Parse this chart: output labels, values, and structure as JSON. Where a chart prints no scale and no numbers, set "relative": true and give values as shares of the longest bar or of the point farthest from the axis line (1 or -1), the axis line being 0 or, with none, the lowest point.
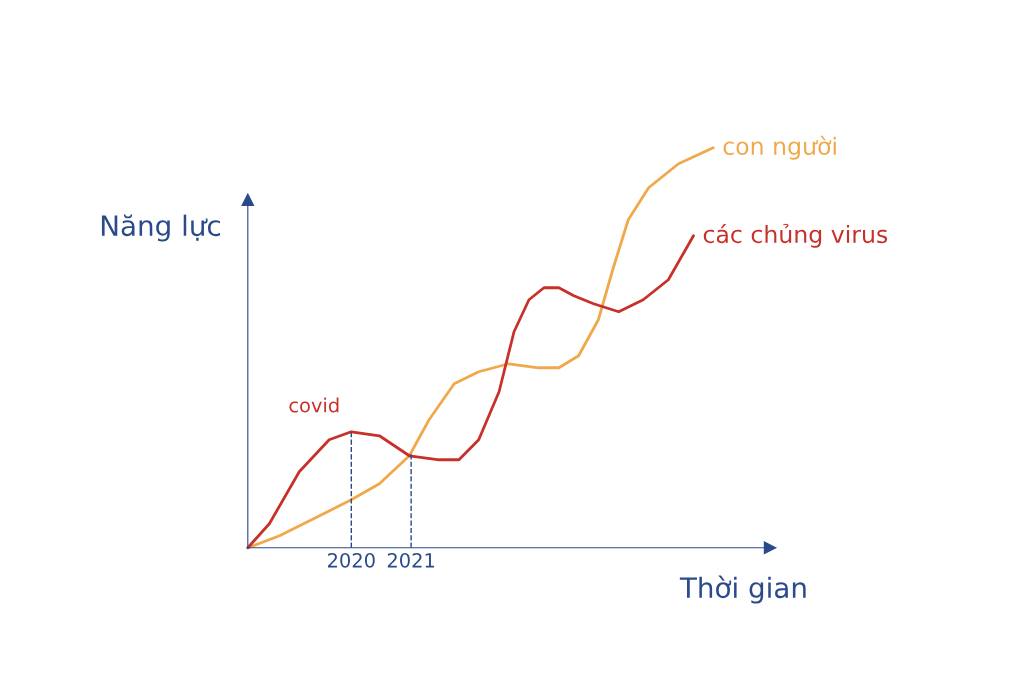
{
  "chart_data": {
    "type": "line",
    "relative": true,
    "xlabel": "Thời gian",
    "ylabel": "Năng lực",
    "xlim": [
      2018.27,
      2027.0
    ],
    "xticks": [
      2020,
      2021
    ],
    "legend": false,
    "grid": false,
    "marker": "none",
    "line_style": "solid",
    "series": [
      {
        "name": "con người",
        "color": "#f0a94a",
        "x": [
          2018.27,
          2018.8,
          2019.47,
          2020.0,
          2020.47,
          2020.97,
          2021.3,
          2021.72,
          2022.13,
          2022.63,
          2023.13,
          2023.47,
          2023.8,
          2024.13,
          2024.38,
          2024.63,
          2024.97,
          2025.47,
          2026.05
        ],
        "values": [
          0,
          0.03,
          0.08,
          0.12,
          0.16,
          0.23,
          0.32,
          0.41,
          0.44,
          0.46,
          0.45,
          0.45,
          0.48,
          0.57,
          0.7,
          0.82,
          0.9,
          0.96,
          1
        ]
      },
      {
        "name": "các chủng virus",
        "color": "#c8302a",
        "x": [
          2018.27,
          2018.63,
          2019.13,
          2019.63,
          2020.0,
          2020.47,
          2020.97,
          2021.47,
          2021.8,
          2022.13,
          2022.47,
          2022.72,
          2022.97,
          2023.22,
          2023.47,
          2023.72,
          2024.05,
          2024.47,
          2024.88,
          2025.3,
          2025.72
        ],
        "values": [
          0,
          0.06,
          0.19,
          0.27,
          0.29,
          0.28,
          0.23,
          0.22,
          0.22,
          0.27,
          0.39,
          0.54,
          0.62,
          0.65,
          0.65,
          0.63,
          0.61,
          0.59,
          0.62,
          0.67,
          0.78
        ]
      }
    ],
    "ref_lines": [
      {
        "axis": "x",
        "value": 2020,
        "color": "#2a4a8a",
        "line_style": "dashed"
      },
      {
        "axis": "x",
        "value": 2021,
        "color": "#2a4a8a",
        "line_style": "dashed"
      }
    ],
    "annotations": [
      {
        "text": "covid",
        "x": 2020,
        "y": 0.29
      }
    ]
  }
}
